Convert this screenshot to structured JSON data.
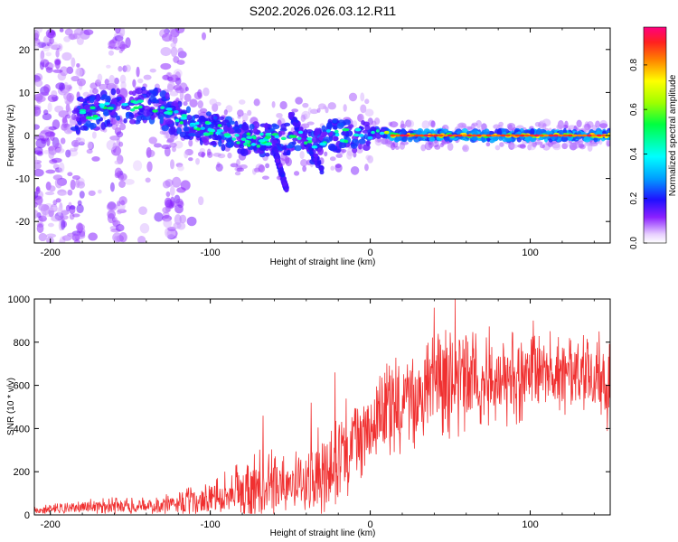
{
  "title": "S202.2026.026.03.12.R11",
  "chart_data": [
    {
      "type": "heatmap",
      "name": "spectrogram",
      "xlabel": "Height of straight line (km)",
      "ylabel": "Frequency (Hz)",
      "xlim": [
        -210,
        150
      ],
      "ylim": [
        -25,
        25
      ],
      "xticks": [
        -200,
        -100,
        0,
        100
      ],
      "yticks": [
        -20,
        -10,
        0,
        10,
        20
      ],
      "colorbar": {
        "label": "Normalized spectral amplitude",
        "range": [
          0,
          0.97
        ],
        "ticks": [
          0.0,
          0.2,
          0.4,
          0.6,
          0.8
        ]
      },
      "ridge": [
        {
          "x": -185,
          "y": 5
        },
        {
          "x": -175,
          "y": 5
        },
        {
          "x": -165,
          "y": 6
        },
        {
          "x": -155,
          "y": 7
        },
        {
          "x": -145,
          "y": 7
        },
        {
          "x": -135,
          "y": 7
        },
        {
          "x": -125,
          "y": 5
        },
        {
          "x": -115,
          "y": 3
        },
        {
          "x": -105,
          "y": 2
        },
        {
          "x": -95,
          "y": 1
        },
        {
          "x": -85,
          "y": 0
        },
        {
          "x": -75,
          "y": -1
        },
        {
          "x": -65,
          "y": -1
        },
        {
          "x": -55,
          "y": -1
        },
        {
          "x": -45,
          "y": 0
        },
        {
          "x": -35,
          "y": -3
        },
        {
          "x": -25,
          "y": 0
        },
        {
          "x": -15,
          "y": 0
        },
        {
          "x": -5,
          "y": 0
        },
        {
          "x": 5,
          "y": 1
        },
        {
          "x": 15,
          "y": 0
        },
        {
          "x": 25,
          "y": 0
        },
        {
          "x": 35,
          "y": 0
        },
        {
          "x": 45,
          "y": 0
        },
        {
          "x": 55,
          "y": 0
        },
        {
          "x": 65,
          "y": 0
        },
        {
          "x": 75,
          "y": 0
        },
        {
          "x": 85,
          "y": 0
        },
        {
          "x": 95,
          "y": 0
        },
        {
          "x": 105,
          "y": 0
        },
        {
          "x": 115,
          "y": 0
        },
        {
          "x": 125,
          "y": 0
        },
        {
          "x": 135,
          "y": 0
        },
        {
          "x": 145,
          "y": 0
        }
      ]
    },
    {
      "type": "line",
      "name": "snr",
      "xlabel": "Height of straight line (km)",
      "ylabel": "SNR (10 * v/v)",
      "xlim": [
        -210,
        150
      ],
      "ylim": [
        0,
        1000
      ],
      "xticks": [
        -200,
        -100,
        0,
        100
      ],
      "yticks": [
        0,
        200,
        400,
        600,
        800,
        1000
      ],
      "color": "#f03030",
      "envelope": [
        {
          "x": -210,
          "base": 20,
          "spread": 20
        },
        {
          "x": -170,
          "base": 40,
          "spread": 40
        },
        {
          "x": -130,
          "base": 40,
          "spread": 50
        },
        {
          "x": -100,
          "base": 70,
          "spread": 90
        },
        {
          "x": -80,
          "base": 110,
          "spread": 140
        },
        {
          "x": -65,
          "base": 130,
          "spread": 200
        },
        {
          "x": -50,
          "base": 150,
          "spread": 120
        },
        {
          "x": -35,
          "base": 170,
          "spread": 220
        },
        {
          "x": -20,
          "base": 280,
          "spread": 240
        },
        {
          "x": -5,
          "base": 380,
          "spread": 220
        },
        {
          "x": 10,
          "base": 480,
          "spread": 220
        },
        {
          "x": 30,
          "base": 560,
          "spread": 250
        },
        {
          "x": 50,
          "base": 620,
          "spread": 270
        },
        {
          "x": 75,
          "base": 640,
          "spread": 240
        },
        {
          "x": 100,
          "base": 640,
          "spread": 220
        },
        {
          "x": 125,
          "base": 650,
          "spread": 200
        },
        {
          "x": 150,
          "base": 600,
          "spread": 230
        }
      ],
      "peaks": [
        {
          "x": -67,
          "y": 460
        },
        {
          "x": -37,
          "y": 520
        },
        {
          "x": -22,
          "y": 660
        },
        {
          "x": 53,
          "y": 1000
        },
        {
          "x": 40,
          "y": 960
        },
        {
          "x": 102,
          "y": 900
        },
        {
          "x": 143,
          "y": 850
        }
      ]
    }
  ]
}
